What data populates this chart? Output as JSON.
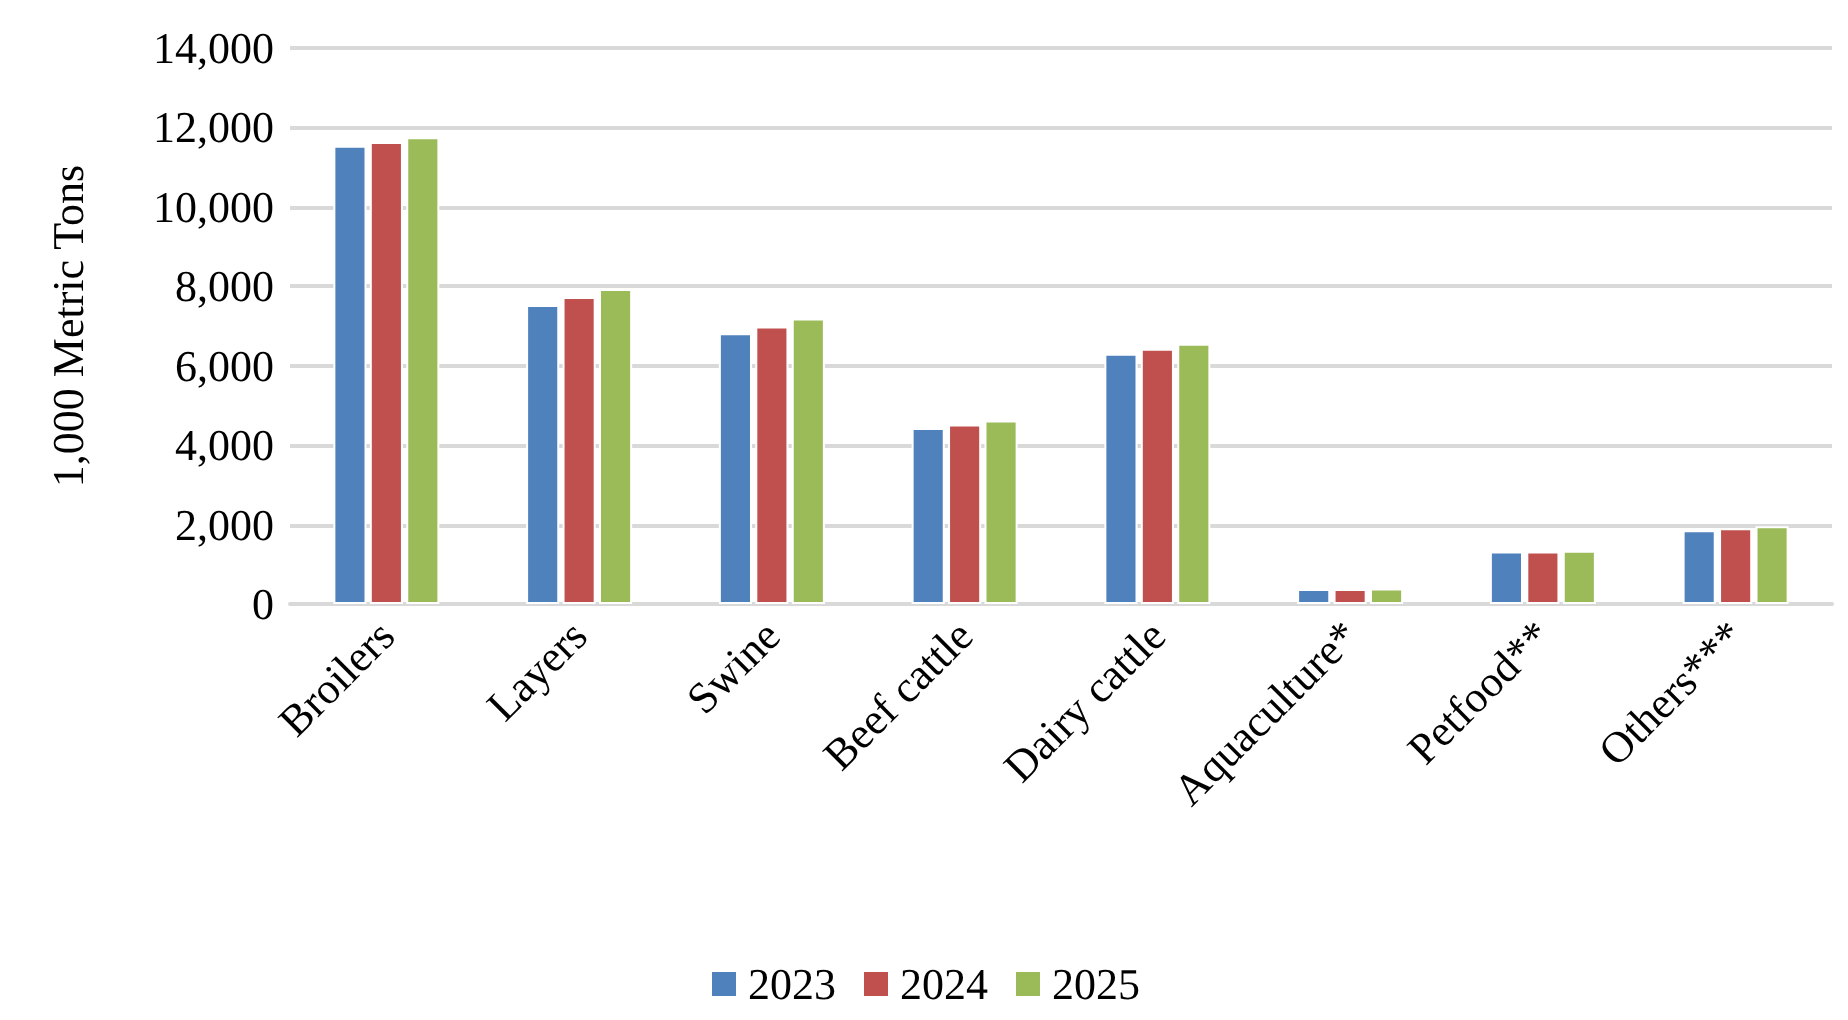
{
  "chart_data": {
    "type": "bar",
    "ylabel": "1,000 Metric Tons",
    "categories": [
      "Broilers",
      "Layers",
      "Swine",
      "Beef cattle",
      "Dairy cattle",
      "Aquaculture*",
      "Petfood**",
      "Others***"
    ],
    "series": [
      {
        "name": "2023",
        "color": "#4f81bd",
        "values": [
          11540,
          7530,
          6820,
          4430,
          6300,
          380,
          1320,
          1860
        ]
      },
      {
        "name": "2024",
        "color": "#c0504d",
        "values": [
          11630,
          7730,
          6990,
          4520,
          6430,
          380,
          1320,
          1910
        ]
      },
      {
        "name": "2025",
        "color": "#9bbb59",
        "values": [
          11750,
          7930,
          7190,
          4620,
          6550,
          390,
          1340,
          1960
        ]
      }
    ],
    "ylim": [
      0,
      14000
    ],
    "yticks": [
      0,
      {
        "value": 2000,
        "label": "2,000"
      },
      {
        "value": 4000,
        "label": "4,000"
      },
      {
        "value": 6000,
        "label": "6,000"
      },
      {
        "value": 8000,
        "label": "8,000"
      },
      {
        "value": 10000,
        "label": "10,000"
      },
      {
        "value": 12000,
        "label": "12,000"
      },
      {
        "value": 14000,
        "label": "14,000"
      }
    ],
    "grid": "y",
    "legend": "bottom"
  }
}
